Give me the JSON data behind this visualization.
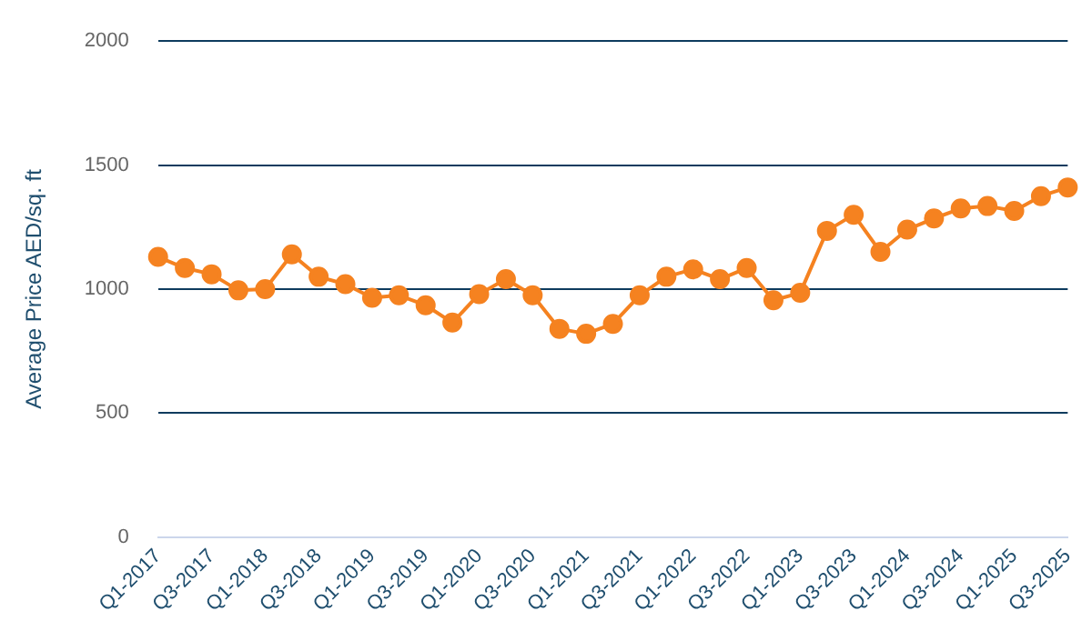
{
  "chart_data": {
    "type": "line",
    "categories": [
      "Q1-2017",
      null,
      "Q3-2017",
      null,
      "Q1-2018",
      null,
      "Q3-2018",
      null,
      "Q1-2019",
      null,
      "Q3-2019",
      null,
      "Q1-2020",
      null,
      "Q3-2020",
      null,
      "Q1-2021",
      null,
      "Q3-2021",
      null,
      "Q1-2022",
      null,
      "Q3-2022",
      null,
      "Q1-2023",
      null,
      "Q3-2023",
      null,
      "Q1-2024",
      null,
      "Q3-2024",
      null,
      "Q1-2025",
      null,
      "Q3-2025"
    ],
    "series": [
      {
        "color": "#f58220",
        "values": [
          1130,
          1085,
          1060,
          995,
          1000,
          1140,
          1050,
          1020,
          965,
          975,
          935,
          865,
          980,
          1040,
          975,
          840,
          820,
          860,
          975,
          1050,
          1080,
          1040,
          1085,
          955,
          985,
          1235,
          1300,
          1150,
          1240,
          1285,
          1325,
          1335,
          1315,
          1375,
          1410
        ]
      }
    ],
    "ylabel": "Average Price AED/sq. ft",
    "ylim": [
      0,
      2000
    ],
    "yticks": [
      0,
      500,
      1000,
      1500,
      2000
    ],
    "grid": "y",
    "legend": false,
    "marker": "circle",
    "line_style": "solid"
  }
}
